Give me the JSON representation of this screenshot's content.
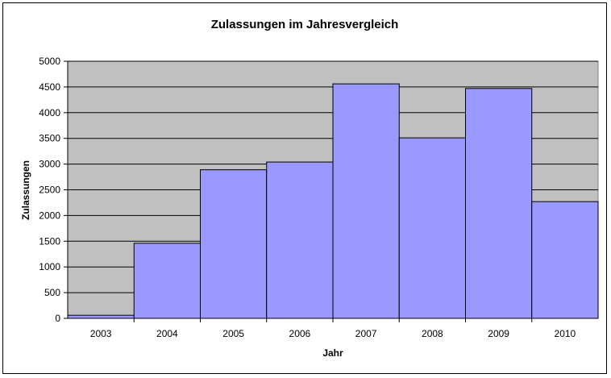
{
  "chart_data": {
    "type": "bar",
    "title": "Zulassungen im Jahresvergleich",
    "xlabel": "Jahr",
    "ylabel": "Zulassungen",
    "categories": [
      "2003",
      "2004",
      "2005",
      "2006",
      "2007",
      "2008",
      "2009",
      "2010"
    ],
    "values": [
      60,
      1460,
      2890,
      3040,
      4560,
      3510,
      4470,
      2270
    ],
    "ylim": [
      0,
      5000
    ],
    "ytick_step": 500,
    "grid": true,
    "legend": "none",
    "colors": {
      "bar_fill": "#9999ff",
      "bar_stroke": "#000000",
      "plot_background": "#c0c0c0",
      "gridline": "#000000"
    }
  }
}
